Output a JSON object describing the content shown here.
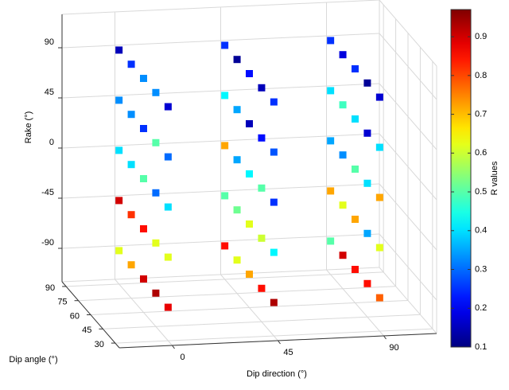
{
  "chart_data": {
    "type": "scatter3d",
    "xlabel": "Dip direction (°)",
    "ylabel": "Dip angle (°)",
    "zlabel": "Rake (°)",
    "colorbar_label": "R values",
    "xlim": [
      -22.5,
      112.5
    ],
    "ylim": [
      25,
      95
    ],
    "zlim": [
      -120,
      120
    ],
    "clim": [
      0.1,
      0.97
    ],
    "xticks": [
      0,
      45,
      90
    ],
    "yticks": [
      30,
      45,
      60,
      75,
      90
    ],
    "zticks": [
      -90,
      -45,
      0,
      45,
      90
    ],
    "cticks": [
      0.1,
      0.2,
      0.3,
      0.4,
      0.5,
      0.6,
      0.7,
      0.8,
      0.9
    ],
    "grid": true,
    "colormap": "jet",
    "marker": "square",
    "x": [
      0,
      0,
      0,
      0,
      0,
      0,
      0,
      0,
      0,
      0,
      0,
      0,
      0,
      0,
      0,
      0,
      0,
      0,
      0,
      0,
      0,
      0,
      0,
      0,
      0,
      45,
      45,
      45,
      45,
      45,
      45,
      45,
      45,
      45,
      45,
      45,
      45,
      45,
      45,
      45,
      45,
      45,
      45,
      45,
      45,
      45,
      45,
      45,
      45,
      45,
      90,
      90,
      90,
      90,
      90,
      90,
      90,
      90,
      90,
      90,
      90,
      90,
      90,
      90,
      90,
      90,
      90,
      90,
      90,
      90,
      90,
      90,
      90,
      90,
      90
    ],
    "y": [
      90,
      75,
      60,
      45,
      30,
      90,
      75,
      60,
      45,
      30,
      90,
      75,
      60,
      45,
      30,
      90,
      75,
      60,
      45,
      30,
      90,
      75,
      60,
      45,
      30,
      90,
      75,
      60,
      45,
      30,
      90,
      75,
      60,
      45,
      30,
      90,
      75,
      60,
      45,
      30,
      90,
      75,
      60,
      45,
      30,
      90,
      75,
      60,
      45,
      30,
      90,
      75,
      60,
      45,
      30,
      90,
      75,
      60,
      45,
      30,
      90,
      75,
      60,
      45,
      30,
      90,
      75,
      60,
      45,
      30,
      90,
      75,
      60,
      45,
      30
    ],
    "z": [
      90,
      90,
      90,
      90,
      90,
      45,
      45,
      45,
      45,
      45,
      0,
      0,
      0,
      0,
      0,
      -45,
      -45,
      -45,
      -45,
      -45,
      -90,
      -90,
      -90,
      -90,
      -90,
      90,
      90,
      90,
      90,
      90,
      45,
      45,
      45,
      45,
      45,
      0,
      0,
      0,
      0,
      0,
      -45,
      -45,
      -45,
      -45,
      -45,
      -90,
      -90,
      -90,
      -90,
      -90,
      90,
      90,
      90,
      90,
      90,
      45,
      45,
      45,
      45,
      45,
      0,
      0,
      0,
      0,
      0,
      -45,
      -45,
      -45,
      -45,
      -45,
      -90,
      -90,
      -90,
      -90,
      -90
    ],
    "values": [
      0.15,
      0.25,
      0.33,
      0.33,
      0.17,
      0.33,
      0.33,
      0.25,
      0.5,
      0.3,
      0.4,
      0.4,
      0.5,
      0.3,
      0.4,
      0.9,
      0.82,
      0.85,
      0.62,
      0.62,
      0.62,
      0.72,
      0.9,
      0.93,
      0.88,
      0.25,
      0.12,
      0.22,
      0.15,
      0.25,
      0.42,
      0.35,
      0.15,
      0.22,
      0.28,
      0.72,
      0.35,
      0.42,
      0.5,
      0.25,
      0.5,
      0.52,
      0.62,
      0.6,
      0.42,
      0.85,
      0.62,
      0.72,
      0.85,
      0.93,
      0.25,
      0.18,
      0.25,
      0.12,
      0.17,
      0.4,
      0.48,
      0.4,
      0.17,
      0.4,
      0.35,
      0.33,
      0.5,
      0.4,
      0.72,
      0.72,
      0.62,
      0.72,
      0.35,
      0.62,
      0.5,
      0.9,
      0.85,
      0.85,
      0.78
    ]
  }
}
